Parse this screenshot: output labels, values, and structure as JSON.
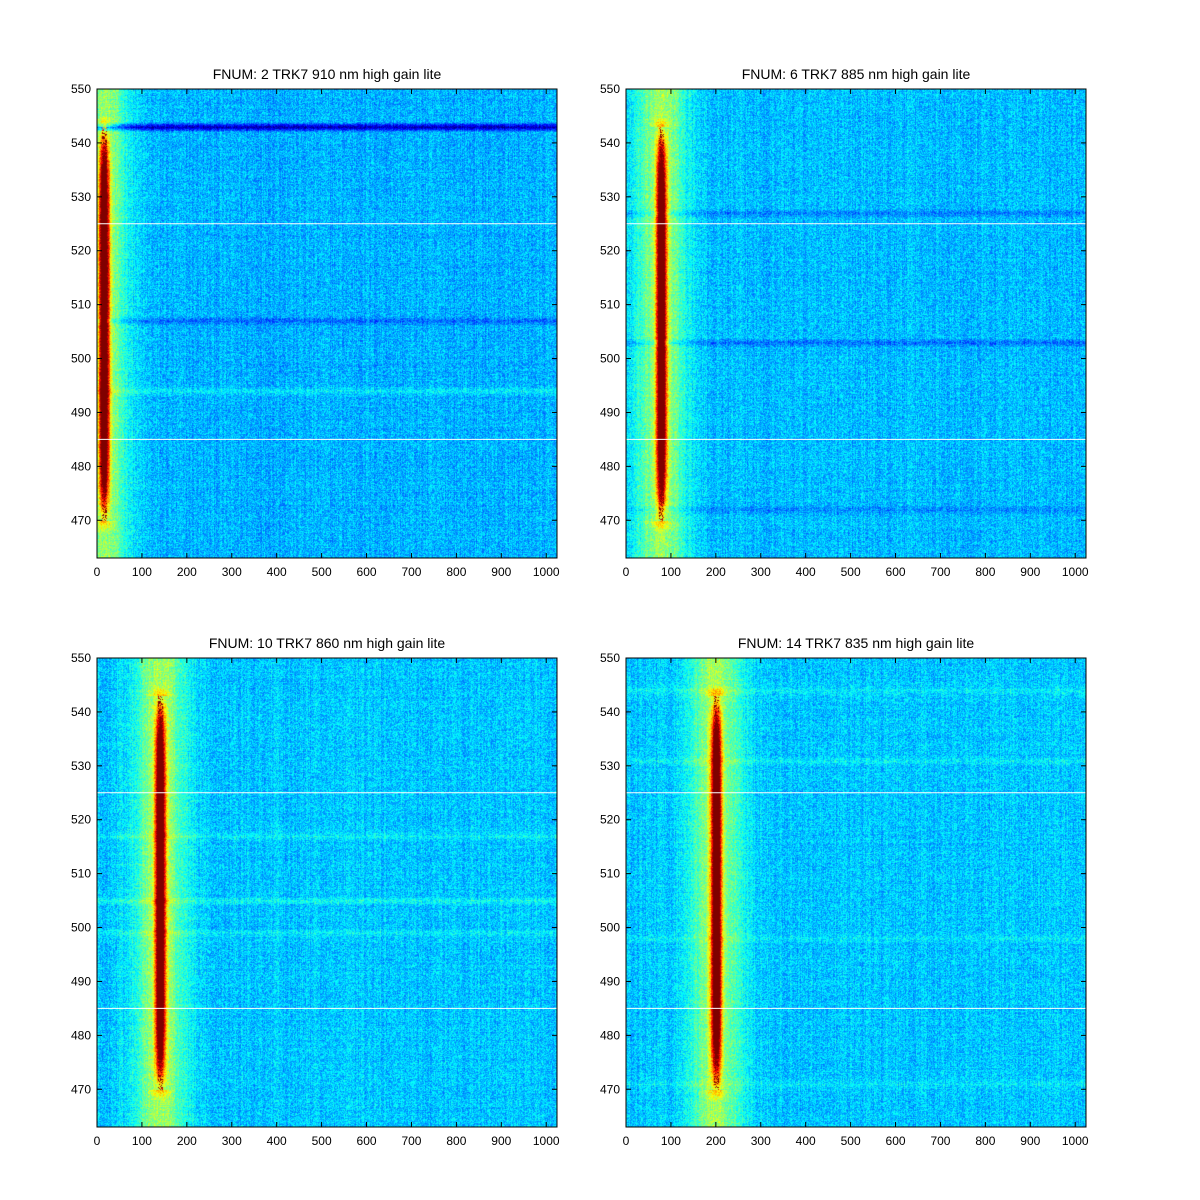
{
  "figure": {
    "background": "#ffffff"
  },
  "chart_data": [
    {
      "type": "heatmap",
      "title": "FNUM: 2 TRK7 910 nm high gain lite",
      "xlim": [
        0,
        1024
      ],
      "ylim": [
        463,
        550
      ],
      "xticks": [
        0,
        100,
        200,
        300,
        400,
        500,
        600,
        700,
        800,
        900,
        1000
      ],
      "yticks": [
        470,
        480,
        490,
        500,
        510,
        520,
        530,
        540,
        550
      ],
      "hlines": [
        485,
        525
      ],
      "peak": {
        "x_center": 15,
        "y_range": [
          470,
          543
        ]
      },
      "stripes": [
        {
          "y": 543,
          "delta": -0.26
        },
        {
          "y": 507,
          "delta": -0.08
        },
        {
          "y": 494,
          "delta": 0.06
        }
      ],
      "colormap": "jet",
      "base_level": 0.3
    },
    {
      "type": "heatmap",
      "title": "FNUM: 6 TRK7 885 nm high gain lite",
      "xlim": [
        0,
        1024
      ],
      "ylim": [
        463,
        550
      ],
      "xticks": [
        0,
        100,
        200,
        300,
        400,
        500,
        600,
        700,
        800,
        900,
        1000
      ],
      "yticks": [
        470,
        480,
        490,
        500,
        510,
        520,
        530,
        540,
        550
      ],
      "hlines": [
        485,
        525
      ],
      "peak": {
        "x_center": 78,
        "y_range": [
          470,
          543
        ]
      },
      "stripes": [
        {
          "y": 527,
          "delta": -0.06
        },
        {
          "y": 503,
          "delta": -0.08
        },
        {
          "y": 472,
          "delta": -0.05
        }
      ],
      "colormap": "jet",
      "base_level": 0.31
    },
    {
      "type": "heatmap",
      "title": "FNUM: 10 TRK7 860 nm high gain lite",
      "xlim": [
        0,
        1024
      ],
      "ylim": [
        463,
        550
      ],
      "xticks": [
        0,
        100,
        200,
        300,
        400,
        500,
        600,
        700,
        800,
        900,
        1000
      ],
      "yticks": [
        470,
        480,
        490,
        500,
        510,
        520,
        530,
        540,
        550
      ],
      "hlines": [
        485,
        525
      ],
      "peak": {
        "x_center": 140,
        "y_range": [
          470,
          543
        ]
      },
      "stripes": [
        {
          "y": 517,
          "delta": 0.05
        },
        {
          "y": 505,
          "delta": 0.07
        },
        {
          "y": 499,
          "delta": 0.04
        }
      ],
      "colormap": "jet",
      "base_level": 0.32
    },
    {
      "type": "heatmap",
      "title": "FNUM: 14 TRK7 835 nm high gain lite",
      "xlim": [
        0,
        1024
      ],
      "ylim": [
        463,
        550
      ],
      "xticks": [
        0,
        100,
        200,
        300,
        400,
        500,
        600,
        700,
        800,
        900,
        1000
      ],
      "yticks": [
        470,
        480,
        490,
        500,
        510,
        520,
        530,
        540,
        550
      ],
      "hlines": [
        485,
        525
      ],
      "peak": {
        "x_center": 200,
        "y_range": [
          470,
          543
        ]
      },
      "stripes": [
        {
          "y": 544,
          "delta": 0.05
        },
        {
          "y": 531,
          "delta": 0.05
        },
        {
          "y": 498,
          "delta": 0.04
        },
        {
          "y": 471,
          "delta": 0.04
        }
      ],
      "colormap": "jet",
      "base_level": 0.32
    }
  ]
}
